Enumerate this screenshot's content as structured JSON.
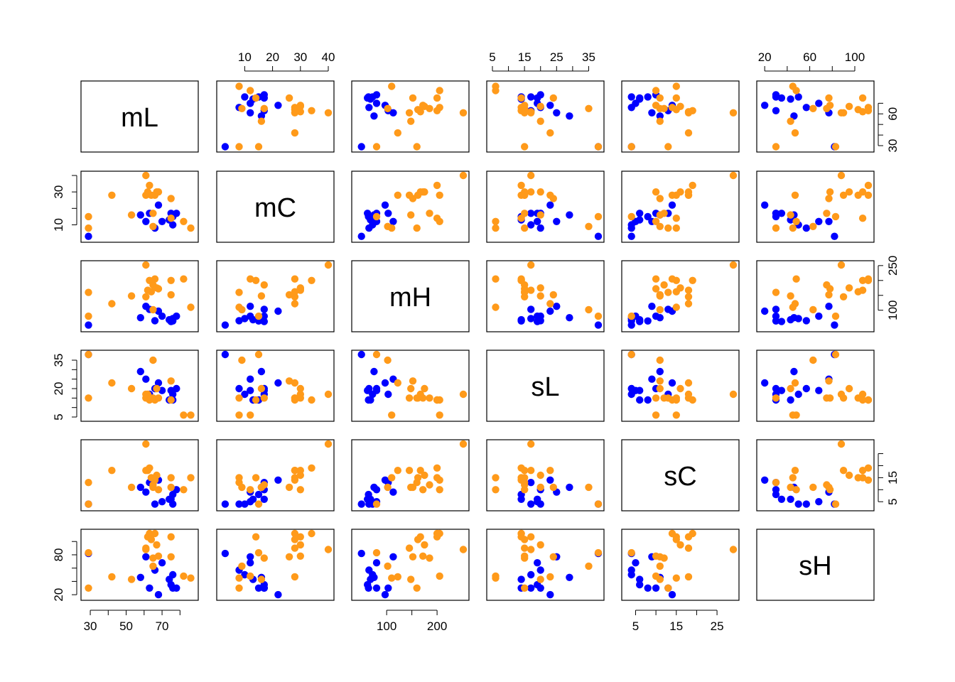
{
  "chart_data": {
    "type": "scatter",
    "title": "",
    "variables": [
      "mL",
      "mC",
      "mH",
      "sL",
      "sC",
      "sH"
    ],
    "colors": {
      "group_a": "#0000ff",
      "group_b": "#ff9a1a"
    },
    "axis_ranges": {
      "mL": [
        28,
        87
      ],
      "mC": [
        2,
        40
      ],
      "mH": [
        42,
        252
      ],
      "sL": [
        5,
        38
      ],
      "sC": [
        3,
        29
      ],
      "sH": [
        18,
        112
      ]
    },
    "tick_labels": {
      "mL": [
        "30",
        "50",
        "70"
      ],
      "mC": [
        "10",
        "20",
        "30",
        "40"
      ],
      "mH": [
        "100",
        "200",
        "250"
      ],
      "sL": [
        "5",
        "15",
        "25",
        "35",
        "20"
      ],
      "sC": [
        "5",
        "15",
        "25"
      ],
      "sH": [
        "20",
        "60",
        "100",
        "80"
      ],
      "mL_right": [
        "30",
        "60"
      ]
    },
    "ticks": {
      "mL": {
        "bottom": [
          30,
          50,
          70
        ],
        "bottom_minor": [
          40,
          60,
          80
        ],
        "right": [
          30,
          60
        ],
        "right_minor": [
          40,
          50,
          70
        ]
      },
      "mC": {
        "top": [
          10,
          20,
          30,
          40
        ],
        "top_minor": [],
        "left": [
          10,
          30
        ],
        "left_minor": [
          20,
          40
        ]
      },
      "mH": {
        "bottom": [
          100,
          200
        ],
        "bottom_minor": [
          150
        ],
        "right": [
          100,
          250
        ],
        "right_minor": [
          150,
          200
        ]
      },
      "sL": {
        "top": [
          5,
          15,
          25,
          35
        ],
        "top_minor": [
          10,
          20,
          30
        ],
        "left": [
          5,
          20,
          35
        ],
        "left_minor": [
          10,
          15,
          25,
          30
        ]
      },
      "sC": {
        "bottom": [
          5,
          15,
          25
        ],
        "bottom_minor": [
          10,
          20
        ],
        "right": [
          5,
          15
        ],
        "right_minor": [
          10,
          20,
          25
        ]
      },
      "sH": {
        "top": [
          20,
          60,
          100
        ],
        "top_minor": [
          40,
          80
        ],
        "left": [
          20,
          80
        ],
        "left_minor": [
          40,
          60,
          100
        ]
      }
    },
    "diagonal_labels": [
      "mL",
      "mC",
      "mH",
      "sL",
      "sC",
      "sH"
    ],
    "points": [
      {
        "group": "group_a",
        "mL": 29,
        "mC": 3,
        "mH": 50,
        "sL": 38,
        "sC": 4,
        "sH": 82
      },
      {
        "group": "group_a",
        "mL": 58,
        "mC": 16,
        "mH": 75,
        "sL": 29,
        "sC": 11,
        "sH": 46
      },
      {
        "group": "group_a",
        "mL": 61,
        "mC": 12,
        "mH": 113,
        "sL": 25,
        "sC": 9,
        "sH": 77
      },
      {
        "group": "group_a",
        "mL": 63,
        "mC": 17,
        "mH": 103,
        "sL": 17,
        "sC": 13,
        "sH": 30
      },
      {
        "group": "group_a",
        "mL": 66,
        "mC": 8,
        "mH": 65,
        "sL": 20,
        "sC": 4,
        "sH": 57
      },
      {
        "group": "group_a",
        "mL": 68,
        "mC": 22,
        "mH": 97,
        "sL": 23,
        "sC": 14,
        "sH": 20
      },
      {
        "group": "group_a",
        "mL": 70,
        "mC": 12,
        "mH": 80,
        "sL": 19,
        "sC": 5,
        "sH": 68
      },
      {
        "group": "group_a",
        "mL": 74,
        "mC": 13,
        "mH": 68,
        "sL": 14,
        "sC": 6,
        "sH": 43
      },
      {
        "group": "group_a",
        "mL": 75,
        "mC": 17,
        "mH": 62,
        "sL": 19,
        "sC": 6,
        "sH": 35
      },
      {
        "group": "group_a",
        "mL": 76,
        "mC": 10,
        "mH": 72,
        "sL": 17,
        "sC": 4,
        "sH": 50
      },
      {
        "group": "group_a",
        "mL": 76,
        "mC": 15,
        "mH": 64,
        "sL": 14,
        "sC": 8,
        "sH": 30
      },
      {
        "group": "group_a",
        "mL": 78,
        "mC": 17,
        "mH": 80,
        "sL": 20,
        "sC": 10,
        "sH": 30
      },
      {
        "group": "group_b",
        "mL": 29,
        "mC": 8,
        "mH": 160,
        "sL": 15,
        "sC": 13,
        "sH": 30
      },
      {
        "group": "group_b",
        "mL": 29,
        "mC": 15,
        "mH": 80,
        "sL": 38,
        "sC": 4,
        "sH": 83
      },
      {
        "group": "group_b",
        "mL": 42,
        "mC": 28,
        "mH": 122,
        "sL": 23,
        "sC": 18,
        "sH": 47
      },
      {
        "group": "group_b",
        "mL": 53,
        "mC": 16,
        "mH": 148,
        "sL": 20,
        "sC": 11,
        "sH": 43
      },
      {
        "group": "group_b",
        "mL": 61,
        "mC": 40,
        "mH": 252,
        "sL": 17,
        "sC": 29,
        "sH": 88
      },
      {
        "group": "group_b",
        "mL": 61,
        "mC": 28,
        "mH": 145,
        "sL": 15,
        "sC": 18,
        "sH": 90
      },
      {
        "group": "group_b",
        "mL": 62,
        "mC": 30,
        "mH": 167,
        "sL": 17,
        "sC": 18,
        "sH": 107
      },
      {
        "group": "group_b",
        "mL": 63,
        "mC": 34,
        "mH": 200,
        "sL": 14,
        "sC": 19,
        "sH": 112
      },
      {
        "group": "group_b",
        "mL": 64,
        "mC": 28,
        "mH": 162,
        "sL": 15,
        "sC": 15,
        "sH": 103
      },
      {
        "group": "group_b",
        "mL": 65,
        "mC": 17,
        "mH": 185,
        "sL": 15,
        "sC": 12,
        "sH": 75
      },
      {
        "group": "group_b",
        "mL": 65,
        "mC": 9,
        "mH": 102,
        "sL": 35,
        "sC": 11,
        "sH": 63
      },
      {
        "group": "group_b",
        "mL": 66,
        "mC": 28,
        "mH": 205,
        "sL": 14,
        "sC": 14,
        "sH": 112
      },
      {
        "group": "group_b",
        "mL": 67,
        "mC": 30,
        "mH": 175,
        "sL": 20,
        "sC": 16,
        "sH": 95
      },
      {
        "group": "group_b",
        "mL": 68,
        "mC": 30,
        "mH": 172,
        "sL": 15,
        "sC": 10,
        "sH": 78
      },
      {
        "group": "group_b",
        "mL": 75,
        "mC": 26,
        "mH": 152,
        "sL": 24,
        "sC": 11,
        "sH": 77
      },
      {
        "group": "group_b",
        "mL": 75,
        "mC": 14,
        "mH": 200,
        "sL": 14,
        "sC": 15,
        "sH": 107
      },
      {
        "group": "group_b",
        "mL": 82,
        "mC": 12,
        "mH": 205,
        "sL": 6,
        "sC": 10,
        "sH": 48
      },
      {
        "group": "group_b",
        "mL": 86,
        "mC": 8,
        "mH": 110,
        "sL": 6,
        "sC": 15,
        "sH": 45
      }
    ]
  }
}
